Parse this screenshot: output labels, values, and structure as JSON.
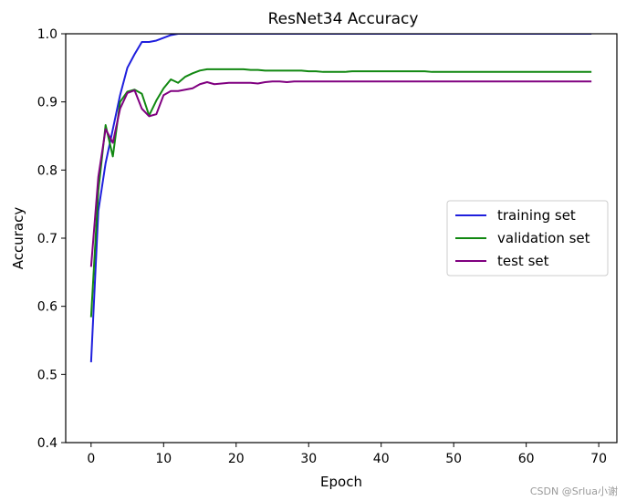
{
  "chart_data": {
    "type": "line",
    "title": "ResNet34 Accuracy",
    "xlabel": "Epoch",
    "ylabel": "Accuracy",
    "xlim": [
      -3.5,
      72.5
    ],
    "ylim": [
      0.4,
      1.0
    ],
    "xticks": [
      0,
      10,
      20,
      30,
      40,
      50,
      60,
      70
    ],
    "yticks": [
      0.4,
      0.5,
      0.6,
      0.7,
      0.8,
      0.9,
      1.0
    ],
    "legend_position": "center-right",
    "grid": false,
    "x": [
      0,
      1,
      2,
      3,
      4,
      5,
      6,
      7,
      8,
      9,
      10,
      11,
      12,
      13,
      14,
      15,
      16,
      17,
      18,
      19,
      20,
      21,
      22,
      23,
      24,
      25,
      26,
      27,
      28,
      29,
      30,
      31,
      32,
      33,
      34,
      35,
      36,
      37,
      38,
      39,
      40,
      41,
      42,
      43,
      44,
      45,
      46,
      47,
      48,
      49,
      50,
      51,
      52,
      53,
      54,
      55,
      56,
      57,
      58,
      59,
      60,
      61,
      62,
      63,
      64,
      65,
      66,
      67,
      68,
      69
    ],
    "series": [
      {
        "name": "training set",
        "color": "#1f1fdd",
        "values": [
          0.518,
          0.74,
          0.81,
          0.86,
          0.91,
          0.95,
          0.97,
          0.988,
          0.988,
          0.99,
          0.994,
          0.998,
          1.0,
          1.0,
          1.0,
          1.0,
          1.0,
          1.0,
          1.0,
          1.0,
          1.0,
          1.0,
          1.0,
          1.0,
          1.0,
          1.0,
          1.0,
          1.0,
          1.0,
          1.0,
          1.0,
          1.0,
          1.0,
          1.0,
          1.0,
          1.0,
          1.0,
          1.0,
          1.0,
          1.0,
          1.0,
          1.0,
          1.0,
          1.0,
          1.0,
          1.0,
          1.0,
          1.0,
          1.0,
          1.0,
          1.0,
          1.0,
          1.0,
          1.0,
          1.0,
          1.0,
          1.0,
          1.0,
          1.0,
          1.0,
          1.0,
          1.0,
          1.0,
          1.0,
          1.0,
          1.0,
          1.0,
          1.0,
          1.0,
          1.0
        ]
      },
      {
        "name": "validation set",
        "color": "#118811",
        "values": [
          0.584,
          0.77,
          0.866,
          0.82,
          0.9,
          0.915,
          0.918,
          0.912,
          0.88,
          0.902,
          0.92,
          0.933,
          0.928,
          0.937,
          0.942,
          0.946,
          0.948,
          0.948,
          0.948,
          0.948,
          0.948,
          0.948,
          0.947,
          0.947,
          0.946,
          0.946,
          0.946,
          0.946,
          0.946,
          0.946,
          0.945,
          0.945,
          0.944,
          0.944,
          0.944,
          0.944,
          0.945,
          0.945,
          0.945,
          0.945,
          0.945,
          0.945,
          0.945,
          0.945,
          0.945,
          0.945,
          0.945,
          0.944,
          0.944,
          0.944,
          0.944,
          0.944,
          0.944,
          0.944,
          0.944,
          0.944,
          0.944,
          0.944,
          0.944,
          0.944,
          0.944,
          0.944,
          0.944,
          0.944,
          0.944,
          0.944,
          0.944,
          0.944,
          0.944,
          0.944
        ]
      },
      {
        "name": "test set",
        "color": "#800080",
        "values": [
          0.658,
          0.79,
          0.86,
          0.84,
          0.89,
          0.913,
          0.917,
          0.89,
          0.879,
          0.882,
          0.91,
          0.916,
          0.916,
          0.918,
          0.92,
          0.926,
          0.929,
          0.926,
          0.927,
          0.928,
          0.928,
          0.928,
          0.928,
          0.927,
          0.929,
          0.93,
          0.93,
          0.929,
          0.93,
          0.93,
          0.93,
          0.93,
          0.93,
          0.93,
          0.93,
          0.93,
          0.93,
          0.93,
          0.93,
          0.93,
          0.93,
          0.93,
          0.93,
          0.93,
          0.93,
          0.93,
          0.93,
          0.93,
          0.93,
          0.93,
          0.93,
          0.93,
          0.93,
          0.93,
          0.93,
          0.93,
          0.93,
          0.93,
          0.93,
          0.93,
          0.93,
          0.93,
          0.93,
          0.93,
          0.93,
          0.93,
          0.93,
          0.93,
          0.93,
          0.93
        ]
      }
    ]
  },
  "watermark": "CSDN @Srlua小谢"
}
